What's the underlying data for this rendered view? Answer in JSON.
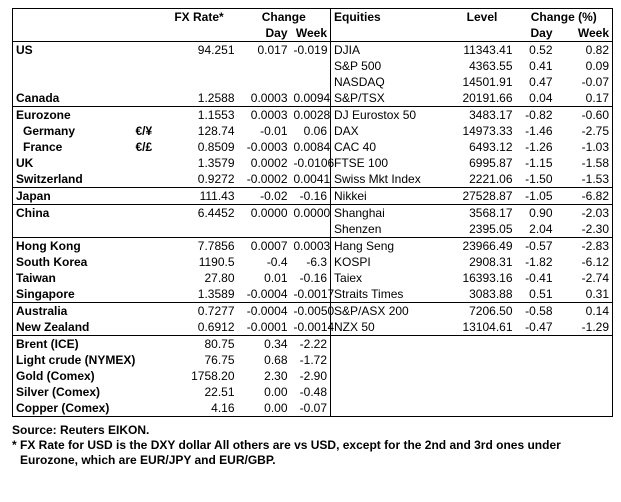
{
  "table": {
    "header": {
      "fx_rate": "FX Rate*",
      "change": "Change",
      "equities": "Equities",
      "level": "Level",
      "change_pct": "Change (%)",
      "day": "Day",
      "week": "Week",
      "day_pct": "Day",
      "week_pct": "Week"
    },
    "groups": [
      {
        "rows": [
          {
            "country": "US",
            "fx_rate": "94.251",
            "fx_day": "0.017",
            "fx_week": "-0.019",
            "equity": "DJIA",
            "level": "11343.41",
            "eq_day": "0.52",
            "eq_week": "0.82"
          },
          {
            "equity": "S&P 500",
            "level": "4363.55",
            "eq_day": "0.41",
            "eq_week": "0.09"
          },
          {
            "equity": "NASDAQ",
            "level": "14501.91",
            "eq_day": "0.47",
            "eq_week": "-0.07"
          },
          {
            "country": "Canada",
            "fx_rate": "1.2588",
            "fx_day": "0.0003",
            "fx_week": "0.0094",
            "equity": "S&P/TSX",
            "level": "20191.66",
            "eq_day": "0.04",
            "eq_week": "0.17"
          }
        ]
      },
      {
        "rows": [
          {
            "country": "Eurozone",
            "fx_rate": "1.1553",
            "fx_day": "0.0003",
            "fx_week": "0.0028",
            "equity": "DJ Eurostox 50",
            "level": "3483.17",
            "eq_day": "-0.82",
            "eq_week": "-0.60"
          },
          {
            "country": "Germany",
            "pair": "€/¥",
            "fx_rate": "128.74",
            "fx_day": "-0.01",
            "fx_week": "0.06",
            "equity": "DAX",
            "level": "14973.33",
            "eq_day": "-1.46",
            "eq_week": "-2.75"
          },
          {
            "country": "France",
            "pair": "€/£",
            "fx_rate": "0.8509",
            "fx_day": "-0.0003",
            "fx_week": "0.0084",
            "equity": "CAC 40",
            "level": "6493.12",
            "eq_day": "-1.26",
            "eq_week": "-1.03"
          },
          {
            "country": "UK",
            "fx_rate": "1.3579",
            "fx_day": "0.0002",
            "fx_week": "-0.0106",
            "equity": "FTSE 100",
            "level": "6995.87",
            "eq_day": "-1.15",
            "eq_week": "-1.58"
          },
          {
            "country": "Switzerland",
            "fx_rate": "0.9272",
            "fx_day": "-0.0002",
            "fx_week": "0.0041",
            "equity": "Swiss Mkt Index",
            "level": "2221.06",
            "eq_day": "-1.50",
            "eq_week": "-1.53"
          }
        ]
      },
      {
        "rows": [
          {
            "country": "Japan",
            "fx_rate": "111.43",
            "fx_day": "-0.02",
            "fx_week": "-0.16",
            "equity": "Nikkei",
            "level": "27528.87",
            "eq_day": "-1.05",
            "eq_week": "-6.82"
          }
        ]
      },
      {
        "rows": [
          {
            "country": "China",
            "fx_rate": "6.4452",
            "fx_day": "0.0000",
            "fx_week": "0.0000",
            "equity": "Shanghai",
            "level": "3568.17",
            "eq_day": "0.90",
            "eq_week": "-2.03"
          },
          {
            "equity": "Shenzen",
            "level": "2395.05",
            "eq_day": "2.04",
            "eq_week": "-2.30"
          }
        ]
      },
      {
        "rows": [
          {
            "country": "Hong Kong",
            "fx_rate": "7.7856",
            "fx_day": "0.0007",
            "fx_week": "0.0003",
            "equity": "Hang Seng",
            "level": "23966.49",
            "eq_day": "-0.57",
            "eq_week": "-2.83"
          },
          {
            "country": "South Korea",
            "fx_rate": "1190.5",
            "fx_day": "-0.4",
            "fx_week": "-6.3",
            "equity": "KOSPI",
            "level": "2908.31",
            "eq_day": "-1.82",
            "eq_week": "-6.12"
          },
          {
            "country": "Taiwan",
            "fx_rate": "27.80",
            "fx_day": "0.01",
            "fx_week": "-0.16",
            "equity": "Taiex",
            "level": "16393.16",
            "eq_day": "-0.41",
            "eq_week": "-2.74"
          },
          {
            "country": "Singapore",
            "fx_rate": "1.3589",
            "fx_day": "-0.0004",
            "fx_week": "-0.0017",
            "equity": "Straits Times",
            "level": "3083.88",
            "eq_day": "0.51",
            "eq_week": "0.31"
          }
        ]
      },
      {
        "rows": [
          {
            "country": "Australia",
            "fx_rate": "0.7277",
            "fx_day": "-0.0004",
            "fx_week": "-0.0050",
            "equity": "S&P/ASX  200",
            "level": "7206.50",
            "eq_day": "-0.58",
            "eq_week": "0.14"
          },
          {
            "country": "New Zealand",
            "fx_rate": "0.6912",
            "fx_day": "-0.0001",
            "fx_week": "-0.0014",
            "equity": "NZX 50",
            "level": "13104.61",
            "eq_day": "-0.47",
            "eq_week": "-1.29"
          }
        ]
      },
      {
        "rows": [
          {
            "country": "Brent (ICE)",
            "fx_rate": "80.75",
            "fx_day": "0.34",
            "fx_week": "-2.22"
          },
          {
            "country": "Light crude (NYMEX)",
            "fx_rate": "76.75",
            "fx_day": "0.68",
            "fx_week": "-1.72"
          },
          {
            "country": "Gold (Comex)",
            "fx_rate": "1758.20",
            "fx_day": "2.30",
            "fx_week": "-2.90"
          },
          {
            "country": "Silver (Comex)",
            "fx_rate": "22.51",
            "fx_day": "0.00",
            "fx_week": "-0.48"
          },
          {
            "country": "Copper (Comex)",
            "fx_rate": "4.16",
            "fx_day": "0.00",
            "fx_week": "-0.07"
          }
        ]
      }
    ],
    "source": "Source:  Reuters EIKON.",
    "note": "* FX Rate for USD is the DXY dollar  All others are vs USD, except for the 2nd and 3rd ones under Eurozone, which are EUR/JPY and EUR/GBP."
  }
}
